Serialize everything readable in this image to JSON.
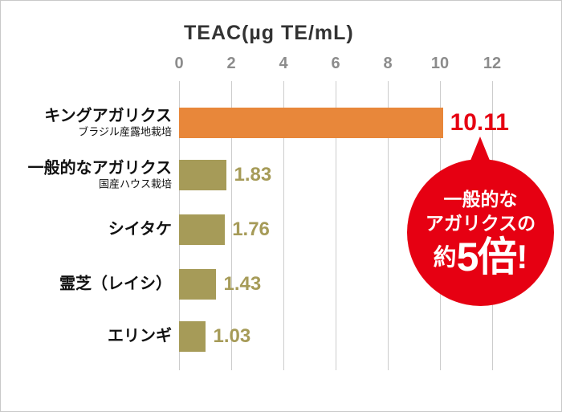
{
  "chart_data": {
    "type": "bar",
    "orientation": "horizontal",
    "title": "TEAC(µg TE/mL)",
    "categories": [
      "キングアガリクス",
      "一般的なアガリクス",
      "シイタケ",
      "霊芝（レイシ）",
      "エリンギ"
    ],
    "sublabels": [
      "ブラジル産露地栽培",
      "国産ハウス栽培",
      "",
      "",
      ""
    ],
    "values": [
      10.11,
      1.83,
      1.76,
      1.43,
      1.03
    ],
    "value_labels": [
      "10.11",
      "1.83",
      "1.76",
      "1.43",
      "1.03"
    ],
    "xlim": [
      0,
      12
    ],
    "xticks": [
      0,
      2,
      4,
      6,
      8,
      10,
      12
    ],
    "grid": true,
    "legend": "none",
    "bar_colors": [
      "#e8873a",
      "#a69b58",
      "#a69b58",
      "#a69b58",
      "#a69b58"
    ],
    "value_colors": [
      "#e60012",
      "#a69b58",
      "#a69b58",
      "#a69b58",
      "#a69b58"
    ]
  },
  "callout": {
    "line1": "一般的な",
    "line2": "アガリクスの",
    "prefix": "約",
    "big": "5倍",
    "exclaim": "!",
    "color": "#e60012"
  },
  "colors": {
    "accent_orange": "#e8873a",
    "olive": "#a69b58",
    "red": "#e60012",
    "tick_gray": "#8c8c8c",
    "gridline": "#cccccc",
    "title_text": "#333333"
  }
}
